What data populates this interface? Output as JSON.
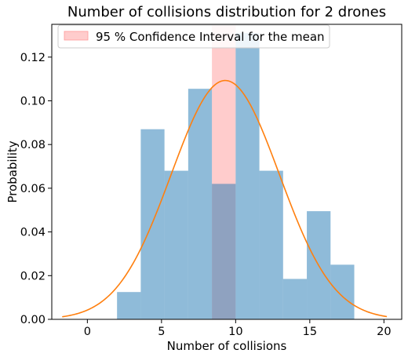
{
  "chart_data": {
    "type": "bar",
    "title": "Number of collisions distribution for 2 drones",
    "xlabel": "Number of collisions",
    "ylabel": "Probability",
    "xlim": [
      -2.4,
      21.2
    ],
    "ylim": [
      0.0,
      0.135
    ],
    "xticks": [
      0,
      5,
      10,
      15,
      20
    ],
    "yticks": [
      0.0,
      0.02,
      0.04,
      0.06,
      0.08,
      0.1,
      0.12
    ],
    "ytick_labels": [
      "0.00",
      "0.02",
      "0.04",
      "0.06",
      "0.08",
      "0.10",
      "0.12"
    ],
    "grid": false,
    "legend_position": "top-left",
    "histogram": {
      "bin_edges": [
        2.0,
        3.6,
        5.2,
        6.8,
        8.4,
        10.0,
        11.6,
        13.2,
        14.8,
        16.4,
        18.0
      ],
      "values": [
        0.0125,
        0.087,
        0.068,
        0.1055,
        0.062,
        0.131,
        0.068,
        0.0185,
        0.0495,
        0.025
      ],
      "color": "#1f77b4",
      "alpha": 0.5
    },
    "confidence_interval": {
      "label": "95 % Confidence Interval for the mean",
      "lower": 8.4,
      "upper": 10.0,
      "color": "#ffcccc"
    },
    "normal_fit": {
      "mean": 9.3,
      "std": 3.65,
      "x_range": [
        -1.7,
        20.2
      ],
      "color": "#ff7f0e"
    }
  }
}
